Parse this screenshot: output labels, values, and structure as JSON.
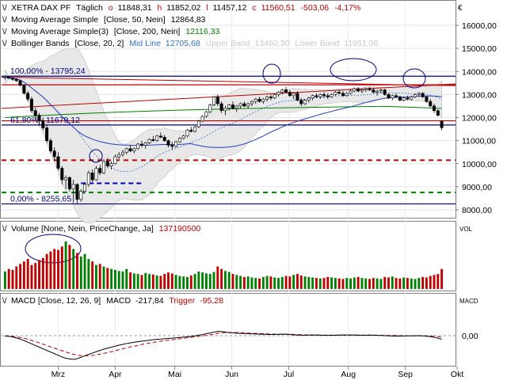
{
  "chart_data": [
    {
      "type": "candlestick",
      "legend": {
        "instrument": "XETRA DAX PF",
        "interval": "Täglich",
        "ohlc": [
          {
            "k": "o",
            "v": "11848,31"
          },
          {
            "k": "h",
            "v": "11852,02"
          },
          {
            "k": "l",
            "v": "11457,12"
          },
          {
            "k": "c",
            "v": "11560,51"
          }
        ],
        "change": "-503,06",
        "change_pct": "-4,17%",
        "indicators": [
          {
            "label": "Moving Average Simple",
            "params": "[Close, 50, Nein]",
            "value": "12864,83",
            "color": "#000000"
          },
          {
            "label": "Moving Average Simple(3)",
            "params": "[Close, 200, Nein]",
            "value": "12116,33",
            "color": "#008000"
          },
          {
            "label": "Bollinger Bands",
            "params": "[Close, 20, 2]",
            "mid_label": "Mid Line",
            "mid_value": "12705,68",
            "upper_label": "Upper Band",
            "upper_value": "13460,30",
            "lower_label": "Lower Band",
            "lower_value": "11951,06"
          }
        ]
      },
      "currency_symbol": "€",
      "y_ticks": [
        8000,
        9000,
        10000,
        11000,
        12000,
        13000,
        14000,
        15000,
        16000
      ],
      "y_tick_labels": [
        "8000,00",
        "9000,00",
        "10000,00",
        "11000,00",
        "12000,00",
        "13000,00",
        "14000,00",
        "15000,00",
        "16000,00"
      ],
      "ylim": [
        7450,
        16700
      ],
      "x_labels": [
        "Mrz",
        "Apr",
        "Mai",
        "Jun",
        "Jul",
        "Aug",
        "Sep",
        "Okt"
      ],
      "fib_labels": [
        {
          "text": "100,00% - 13795,24",
          "price": 13795.24
        },
        {
          "text": "61,80% - 11679,12",
          "price": 11679.12
        },
        {
          "text": "0,00% - 8255,65",
          "price": 8255.65
        }
      ],
      "horizontal_lines": [
        {
          "price": 13795,
          "color": "#000080",
          "style": "solid"
        },
        {
          "price": 13420,
          "color": "#c00000",
          "style": "solid"
        },
        {
          "price": 11860,
          "color": "#c00000",
          "style": "solid"
        },
        {
          "price": 11679,
          "color": "#000080",
          "style": "solid"
        },
        {
          "price": 10150,
          "color": "#c00000",
          "style": "dashed"
        },
        {
          "price": 8750,
          "color": "#008000",
          "style": "dashed"
        },
        {
          "price": 8256,
          "color": "#000080",
          "style": "solid"
        }
      ],
      "short_dashed_segment": {
        "price": 9150,
        "x_from_index": 20,
        "x_to_index": 36,
        "color": "#0000c0"
      },
      "candles": [
        [
          13720,
          13800,
          13650,
          13760
        ],
        [
          13760,
          13790,
          13680,
          13700
        ],
        [
          13700,
          13760,
          13600,
          13660
        ],
        [
          13660,
          13700,
          13550,
          13600
        ],
        [
          13600,
          13650,
          13350,
          13400
        ],
        [
          13400,
          13450,
          13000,
          13050
        ],
        [
          13050,
          13150,
          12700,
          12800
        ],
        [
          12800,
          12900,
          12200,
          12300
        ],
        [
          12300,
          12450,
          11900,
          12100
        ],
        [
          12100,
          12200,
          11650,
          11850
        ],
        [
          11850,
          12000,
          11450,
          11550
        ],
        [
          11550,
          11700,
          10900,
          11000
        ],
        [
          11000,
          11100,
          10450,
          10550
        ],
        [
          10550,
          10700,
          10100,
          10300
        ],
        [
          10300,
          10500,
          9700,
          9800
        ],
        [
          9800,
          9900,
          9100,
          9300
        ],
        [
          9300,
          9500,
          8900,
          9400
        ],
        [
          9400,
          9450,
          8800,
          8900
        ],
        [
          8900,
          9300,
          8300,
          9100
        ],
        [
          9100,
          9150,
          8255,
          8450
        ],
        [
          8450,
          8900,
          8350,
          8800
        ],
        [
          8800,
          9200,
          8700,
          9100
        ],
        [
          9100,
          9700,
          9000,
          9600
        ],
        [
          9600,
          9750,
          9200,
          9300
        ],
        [
          9300,
          9900,
          9250,
          9800
        ],
        [
          9800,
          9950,
          9500,
          9600
        ],
        [
          9600,
          10200,
          9550,
          10100
        ],
        [
          10100,
          10250,
          9800,
          9900
        ],
        [
          9900,
          10100,
          9750,
          10000
        ],
        [
          10000,
          10400,
          9950,
          10300
        ],
        [
          10300,
          10500,
          10200,
          10400
        ],
        [
          10400,
          10600,
          10300,
          10500
        ],
        [
          10500,
          10700,
          10400,
          10650
        ],
        [
          10650,
          10800,
          10500,
          10550
        ],
        [
          10550,
          10700,
          10450,
          10650
        ],
        [
          10650,
          10900,
          10600,
          10850
        ],
        [
          10850,
          11000,
          10700,
          10800
        ],
        [
          10800,
          10950,
          10650,
          10900
        ],
        [
          10900,
          11100,
          10850,
          11050
        ],
        [
          11050,
          11200,
          10950,
          11000
        ],
        [
          11000,
          11250,
          10950,
          11200
        ],
        [
          11200,
          11350,
          11100,
          11150
        ],
        [
          11150,
          11250,
          10950,
          11000
        ],
        [
          11000,
          11050,
          10700,
          10800
        ],
        [
          10800,
          10950,
          10600,
          10750
        ],
        [
          10750,
          11000,
          10700,
          10950
        ],
        [
          10950,
          11150,
          10900,
          11100
        ],
        [
          11100,
          11250,
          11050,
          11200
        ],
        [
          11200,
          11500,
          11150,
          11450
        ],
        [
          11450,
          11600,
          11350,
          11400
        ],
        [
          11400,
          11650,
          11350,
          11600
        ],
        [
          11600,
          11900,
          11550,
          11850
        ],
        [
          11850,
          12100,
          11800,
          12050
        ],
        [
          12050,
          12300,
          12000,
          12250
        ],
        [
          12250,
          12600,
          12200,
          12550
        ],
        [
          12550,
          12950,
          12500,
          12900
        ],
        [
          12900,
          13000,
          12500,
          12600
        ],
        [
          12600,
          12700,
          12200,
          12300
        ],
        [
          12300,
          12500,
          12100,
          12400
        ],
        [
          12400,
          12600,
          12300,
          12550
        ],
        [
          12550,
          12700,
          12350,
          12400
        ],
        [
          12400,
          12550,
          12250,
          12500
        ],
        [
          12500,
          12650,
          12400,
          12600
        ],
        [
          12600,
          12700,
          12450,
          12500
        ],
        [
          12500,
          12650,
          12400,
          12600
        ],
        [
          12600,
          12750,
          12500,
          12700
        ],
        [
          12700,
          12850,
          12600,
          12800
        ],
        [
          12800,
          12900,
          12650,
          12700
        ],
        [
          12700,
          12850,
          12600,
          12800
        ],
        [
          12800,
          12950,
          12700,
          12900
        ],
        [
          12900,
          13000,
          12750,
          12850
        ],
        [
          12850,
          13050,
          12800,
          13000
        ],
        [
          13000,
          13150,
          12900,
          13100
        ],
        [
          13100,
          13250,
          13000,
          13200
        ],
        [
          13200,
          13320,
          13050,
          13100
        ],
        [
          13100,
          13200,
          12900,
          12950
        ],
        [
          12950,
          13100,
          12800,
          13050
        ],
        [
          13050,
          13150,
          12700,
          12750
        ],
        [
          12750,
          12850,
          12500,
          12600
        ],
        [
          12600,
          12800,
          12550,
          12750
        ],
        [
          12750,
          12900,
          12650,
          12850
        ],
        [
          12850,
          13000,
          12750,
          12950
        ],
        [
          12950,
          13050,
          12850,
          12900
        ],
        [
          12900,
          13050,
          12800,
          13000
        ],
        [
          13000,
          13100,
          12850,
          12950
        ],
        [
          12950,
          13050,
          12800,
          12900
        ],
        [
          12900,
          13050,
          12850,
          13000
        ],
        [
          13000,
          13150,
          12950,
          13100
        ],
        [
          13100,
          13200,
          13000,
          13050
        ],
        [
          13050,
          13150,
          12900,
          12950
        ],
        [
          12950,
          13100,
          12900,
          13050
        ],
        [
          13050,
          13200,
          13000,
          13150
        ],
        [
          13150,
          13300,
          13100,
          13250
        ],
        [
          13250,
          13320,
          13100,
          13150
        ],
        [
          13150,
          13250,
          13050,
          13200
        ],
        [
          13200,
          13300,
          13100,
          13250
        ],
        [
          13250,
          13320,
          13150,
          13200
        ],
        [
          13200,
          13280,
          13050,
          13100
        ],
        [
          13100,
          13200,
          12950,
          13150
        ],
        [
          13150,
          13250,
          13050,
          13200
        ],
        [
          13200,
          13250,
          12950,
          13000
        ],
        [
          13000,
          13050,
          12800,
          12850
        ],
        [
          12850,
          13000,
          12750,
          12950
        ],
        [
          12950,
          13050,
          12850,
          12900
        ],
        [
          12900,
          12950,
          12700,
          12750
        ],
        [
          12750,
          12900,
          12700,
          12850
        ],
        [
          12850,
          12950,
          12750,
          12800
        ],
        [
          12800,
          12950,
          12750,
          12900
        ],
        [
          12900,
          13050,
          12850,
          13000
        ],
        [
          13000,
          13100,
          12900,
          13050
        ],
        [
          13050,
          13100,
          12850,
          12900
        ],
        [
          12900,
          12950,
          12650,
          12700
        ],
        [
          12700,
          12800,
          12450,
          12500
        ],
        [
          12500,
          12600,
          12200,
          12300
        ],
        [
          12300,
          12350,
          12050,
          12100
        ],
        [
          11848.31,
          11852.02,
          11457.12,
          11560.51
        ]
      ],
      "volume": {
        "legend": "Volume [None, Nein, PriceChange, Ja]",
        "value": "137190500",
        "axis_label": "VOL",
        "bars": [
          35,
          40,
          38,
          45,
          50,
          55,
          60,
          48,
          52,
          58,
          62,
          70,
          75,
          80,
          78,
          85,
          95,
          88,
          80,
          72,
          65,
          70,
          60,
          55,
          48,
          50,
          45,
          42,
          40,
          38,
          36,
          35,
          40,
          33,
          31,
          30,
          28,
          32,
          30,
          29,
          27,
          26,
          30,
          33,
          31,
          28,
          26,
          25,
          24,
          27,
          30,
          35,
          33,
          31,
          30,
          34,
          45,
          40,
          36,
          34,
          30,
          28,
          26,
          24,
          25,
          23,
          22,
          21,
          24,
          26,
          25,
          23,
          22,
          24,
          26,
          25,
          28,
          30,
          27,
          25,
          24,
          23,
          22,
          21,
          22,
          24,
          23,
          22,
          21,
          20,
          22,
          21,
          23,
          24,
          22,
          21,
          20,
          22,
          21,
          20,
          24,
          23,
          25,
          22,
          21,
          23,
          22,
          21,
          20,
          22,
          24,
          23,
          26,
          28,
          30,
          40
        ]
      },
      "macd": {
        "legend": "MACD [Close, 12, 26, 9]",
        "macd_label": "MACD",
        "macd_value": "-217,84",
        "trigger_label": "Trigger",
        "trigger_value": "-95,28",
        "axis_label": "MACD",
        "zero_label": "0,00",
        "macd_values": [
          -10,
          -20,
          -40,
          -80,
          -140,
          -210,
          -300,
          -400,
          -500,
          -600,
          -700,
          -800,
          -900,
          -1000,
          -1100,
          -1200,
          -1300,
          -1380,
          -1420,
          -1450,
          -1400,
          -1320,
          -1230,
          -1140,
          -1060,
          -980,
          -900,
          -820,
          -760,
          -700,
          -640,
          -580,
          -530,
          -480,
          -440,
          -400,
          -370,
          -340,
          -310,
          -280,
          -250,
          -220,
          -210,
          -190,
          -170,
          -150,
          -130,
          -110,
          -90,
          -70,
          -40,
          -10,
          30,
          70,
          120,
          170,
          220,
          260,
          250,
          230,
          210,
          190,
          170,
          150,
          140,
          130,
          120,
          110,
          100,
          90,
          85,
          80,
          75,
          70,
          80,
          90,
          85,
          70,
          50,
          40,
          30,
          30,
          35,
          40,
          35,
          30,
          25,
          20,
          25,
          30,
          35,
          40,
          45,
          40,
          35,
          30,
          25,
          30,
          35,
          30,
          20,
          10,
          0,
          -10,
          -20,
          -30,
          -25,
          -20,
          -15,
          -10,
          -5,
          0,
          -10,
          -30,
          -60,
          -100,
          -160,
          -218
        ],
        "trigger_values": [
          -5,
          -10,
          -20,
          -40,
          -70,
          -110,
          -160,
          -220,
          -290,
          -360,
          -440,
          -520,
          -600,
          -680,
          -760,
          -840,
          -920,
          -1000,
          -1070,
          -1140,
          -1190,
          -1220,
          -1230,
          -1220,
          -1200,
          -1170,
          -1130,
          -1080,
          -1030,
          -980,
          -920,
          -860,
          -800,
          -740,
          -690,
          -640,
          -590,
          -540,
          -490,
          -450,
          -410,
          -370,
          -340,
          -310,
          -280,
          -250,
          -220,
          -190,
          -160,
          -130,
          -100,
          -70,
          -40,
          -10,
          20,
          60,
          100,
          140,
          170,
          190,
          200,
          200,
          195,
          190,
          180,
          170,
          160,
          150,
          140,
          130,
          120,
          110,
          100,
          90,
          90,
          90,
          88,
          85,
          80,
          70,
          60,
          50,
          45,
          42,
          40,
          38,
          35,
          32,
          30,
          30,
          30,
          32,
          34,
          35,
          36,
          35,
          33,
          32,
          31,
          30,
          28,
          25,
          20,
          15,
          10,
          5,
          0,
          -2,
          -4,
          -6,
          -8,
          -9,
          -10,
          -12,
          -20,
          -35,
          -60,
          -95
        ]
      }
    }
  ]
}
